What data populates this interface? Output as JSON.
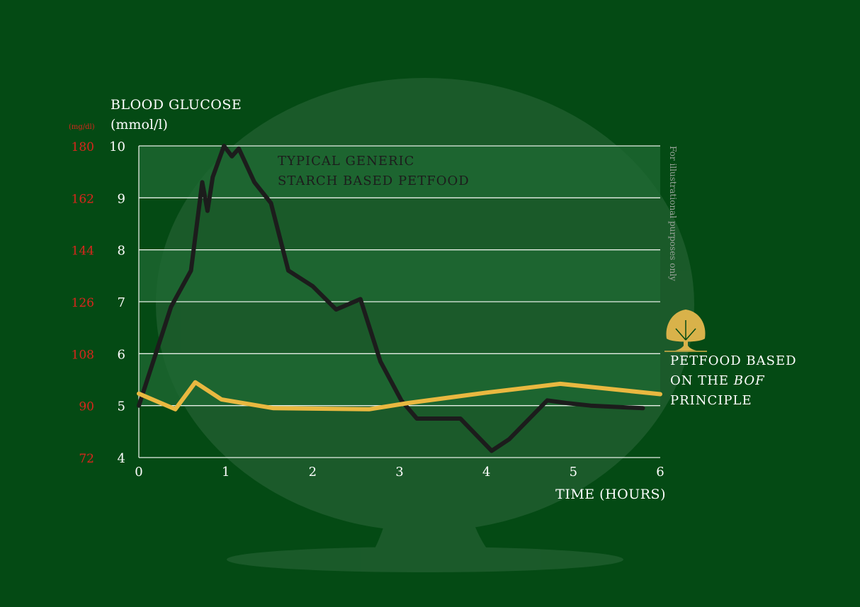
{
  "colors": {
    "background": "#044a14",
    "band": "#1f6a33",
    "grid": "#e6efe6",
    "axis_text": "#ffffff",
    "mgdl_text": "#d9261c",
    "starch_series": "#1c1c1c",
    "bof_series": "#e9b840",
    "note_text": "#9aa49a",
    "logo": "#d9b24a"
  },
  "icons": {
    "logo": "tree-logo-icon",
    "watermark": "tree-watermark-icon"
  },
  "chart_data": {
    "type": "line",
    "title": "",
    "ylabel": "BLOOD GLUCOSE",
    "ylabel_unit": "(mmol/l)",
    "ylabel_secondary_unit": "(mg/dl)",
    "xlabel": "TIME (HOURS)",
    "xlim": [
      0,
      6
    ],
    "ylim": [
      4,
      10
    ],
    "x_ticks": [
      "0",
      "1",
      "2",
      "3",
      "4",
      "5",
      "6"
    ],
    "y_ticks": [
      "4",
      "5",
      "6",
      "7",
      "8",
      "9",
      "10"
    ],
    "y_ticks_secondary": [
      "72",
      "90",
      "108",
      "126",
      "144",
      "162",
      "180"
    ],
    "grid": "horizontal",
    "shaded_bands": [
      [
        5,
        6
      ],
      [
        7,
        8
      ],
      [
        9,
        10
      ]
    ],
    "note": "For illustrational purposes only",
    "series": [
      {
        "name": "TYPICAL GENERIC STARCH BASED PETFOOD",
        "name_lines": [
          "TYPICAL GENERIC",
          "STARCH BASED PETFOOD"
        ],
        "color": "#1c1c1c",
        "x": [
          0,
          0.37,
          0.6,
          0.73,
          0.79,
          0.85,
          0.98,
          1.07,
          1.15,
          1.33,
          1.52,
          1.72,
          2.0,
          2.27,
          2.55,
          2.78,
          3.02,
          3.2,
          3.45,
          3.7,
          4.06,
          4.26,
          4.7,
          4.92,
          5.2,
          5.8
        ],
        "values": [
          5.0,
          6.9,
          7.6,
          9.3,
          8.75,
          9.4,
          10.0,
          9.8,
          9.95,
          9.3,
          8.9,
          7.6,
          7.3,
          6.85,
          7.05,
          5.85,
          5.1,
          4.75,
          4.75,
          4.75,
          4.13,
          4.35,
          5.1,
          5.05,
          5.0,
          4.95
        ]
      },
      {
        "name": "PETFOOD BASED ON THE BOF PRINCIPLE",
        "name_lines": [
          "PETFOOD BASED",
          "ON THE ",
          "BOF",
          " PRINCIPLE"
        ],
        "color": "#e9b840",
        "x": [
          0,
          0.42,
          0.65,
          0.95,
          1.55,
          2.65,
          3.1,
          4.0,
          4.85,
          6.0
        ],
        "values": [
          5.23,
          4.93,
          5.45,
          5.12,
          4.95,
          4.93,
          5.05,
          5.25,
          5.42,
          5.22
        ]
      }
    ]
  }
}
